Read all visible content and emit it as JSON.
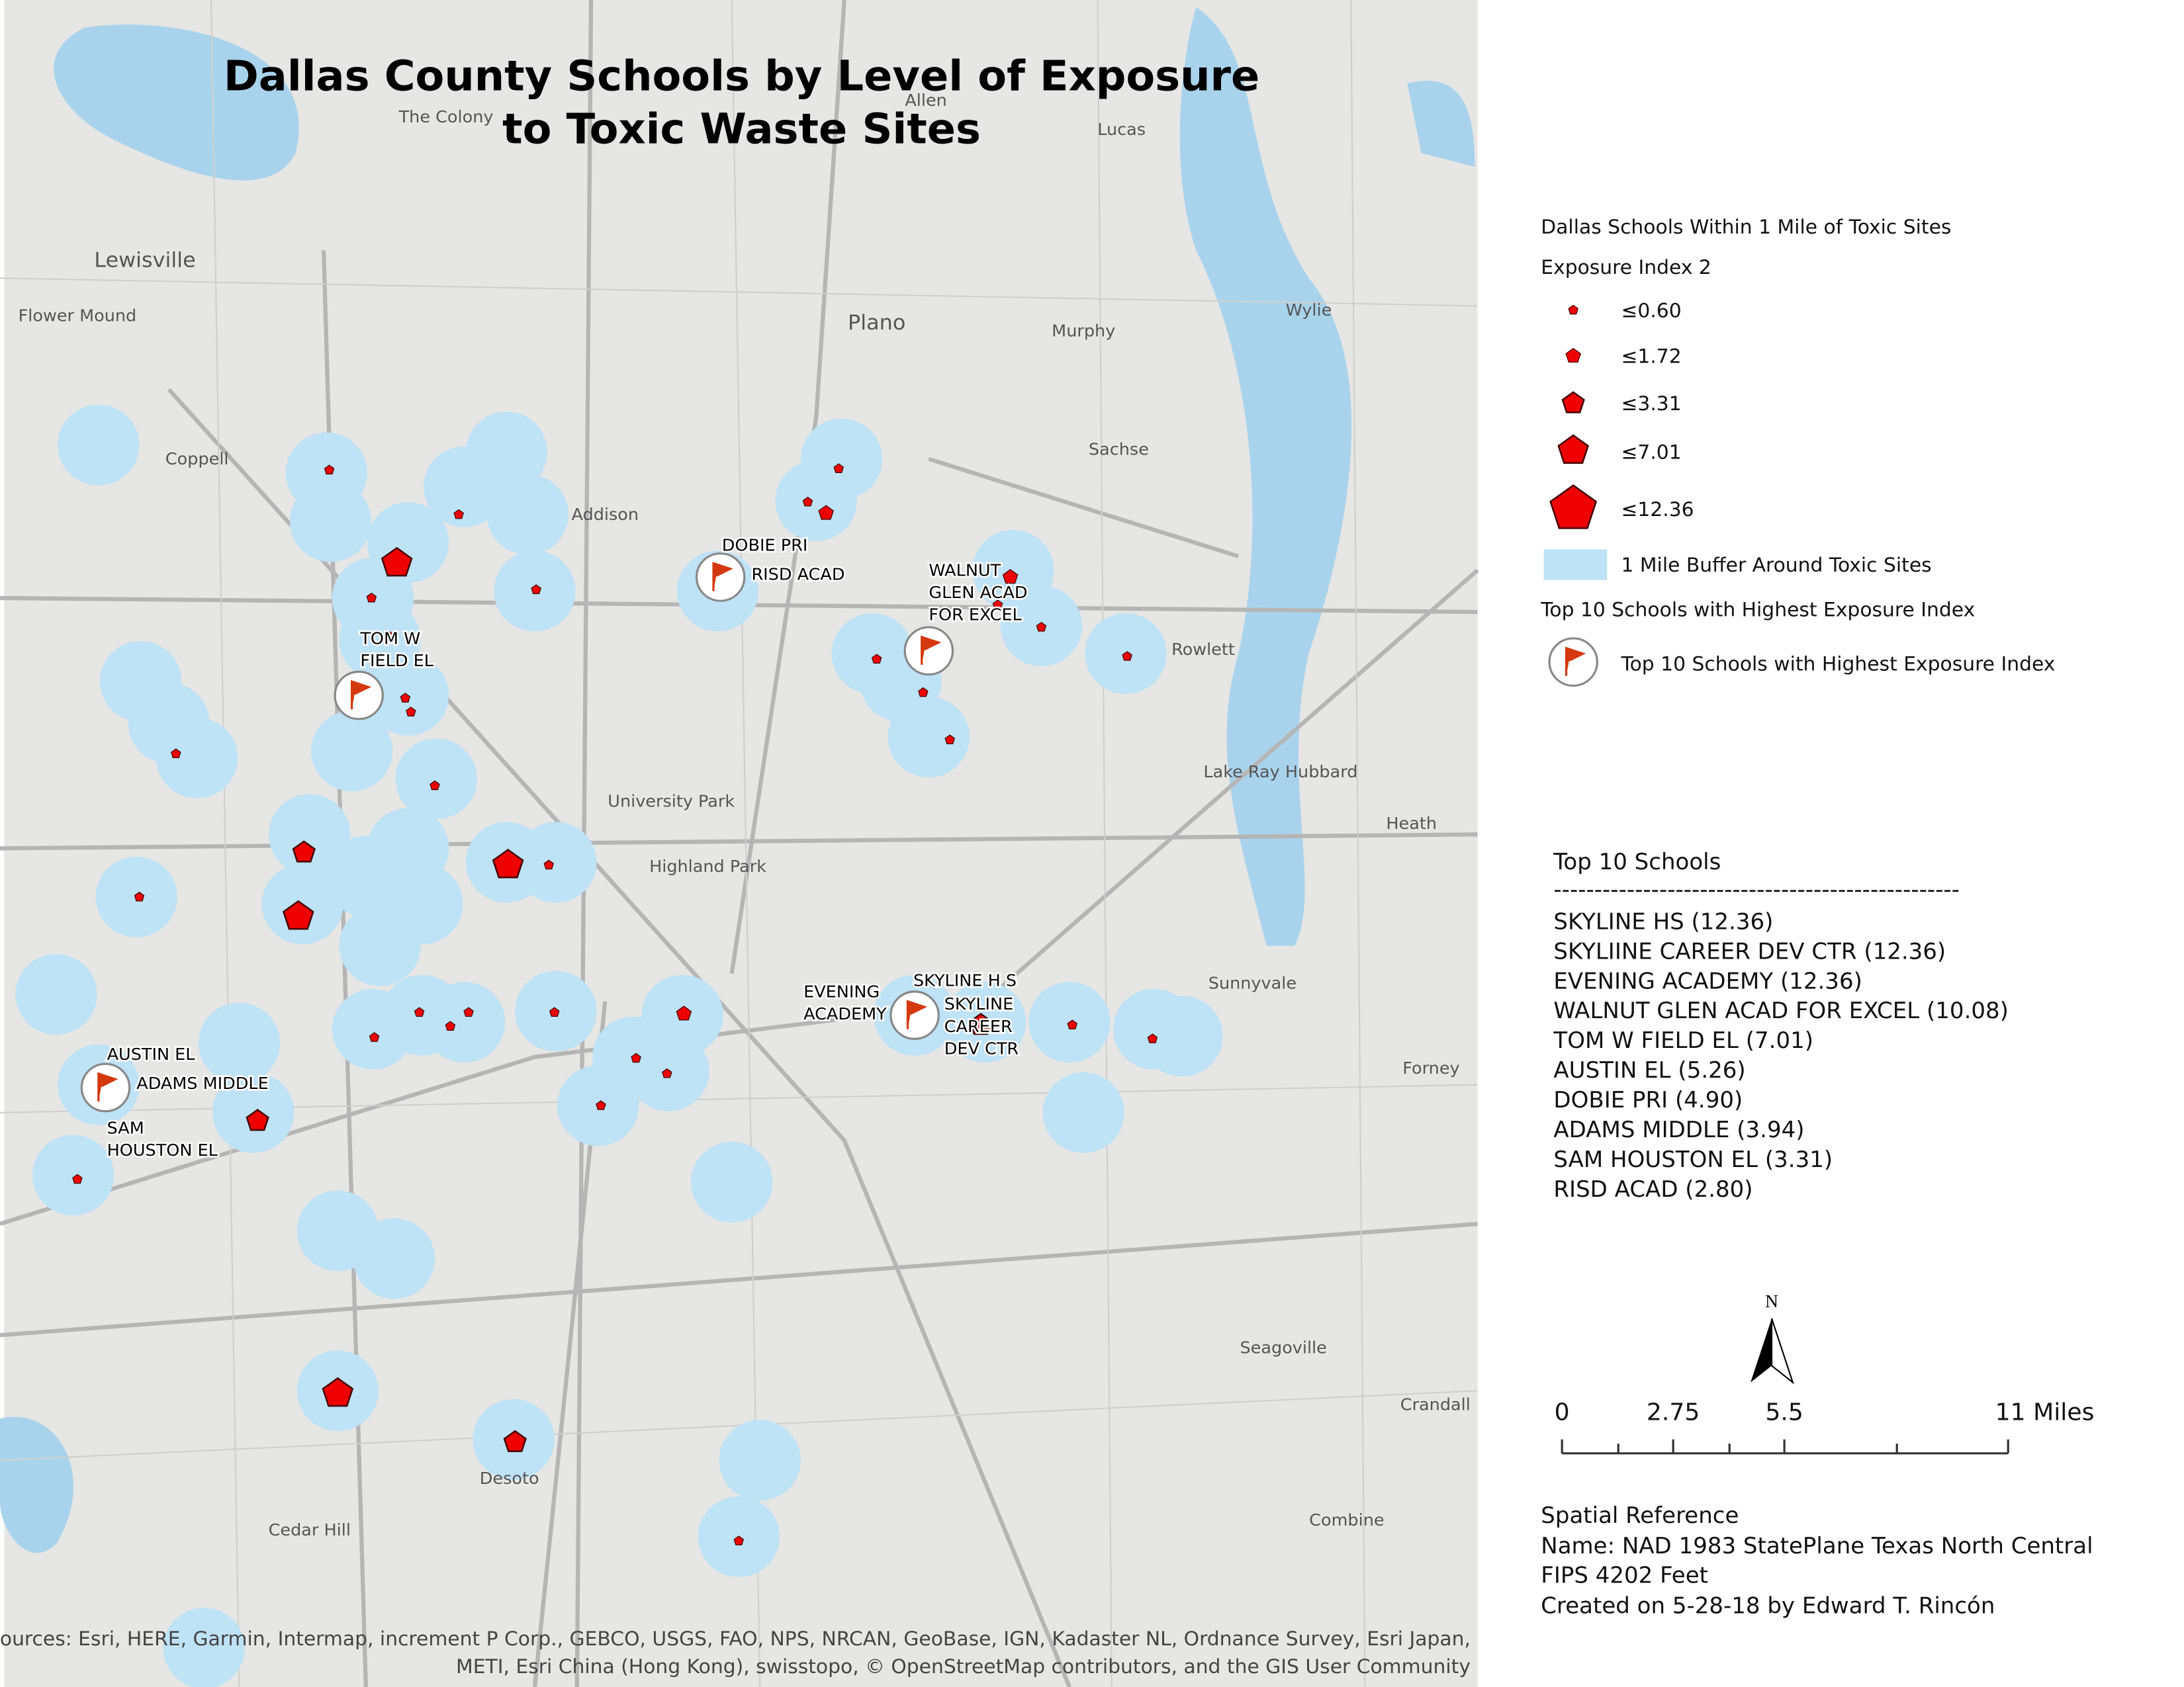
{
  "title": [
    "Dallas County Schools by Level of Exposure",
    "to Toxic Waste Sites"
  ],
  "legend": {
    "layer": "Dallas Schools Within 1 Mile of Toxic Sites",
    "field": "Exposure Index 2",
    "classes": [
      "≤0.60",
      "≤1.72",
      "≤3.31",
      "≤7.01",
      "≤12.36"
    ],
    "buffer": "1 Mile Buffer Around Toxic Sites",
    "top_layer": "Top 10 Schools with Highest Exposure Index",
    "top_item": "Top 10 Schools with Highest Exposure Index"
  },
  "top10": {
    "heading": "Top 10 Schools",
    "rule": "--------------------------------------------------",
    "items": [
      "SKYLINE HS (12.36)",
      "SKYLIINE CAREER DEV CTR (12.36)",
      "EVENING ACADEMY (12.36)",
      "WALNUT GLEN ACAD FOR EXCEL (10.08)",
      "TOM W FIELD EL (7.01)",
      "AUSTIN EL  (5.26)",
      "DOBIE PRI (4.90)",
      "ADAMS MIDDLE (3.94)",
      "SAM HOUSTON EL (3.31)",
      "RISD ACAD (2.80)"
    ]
  },
  "map_labels": [
    [
      "DOBIE PRI"
    ],
    [
      "RISD ACAD"
    ],
    [
      "WALNUT",
      "GLEN ACAD",
      "FOR EXCEL"
    ],
    [
      "TOM W",
      "FIELD EL"
    ],
    [
      "SKYLINE H S"
    ],
    [
      "EVENING",
      "ACADEMY"
    ],
    [
      "SKYLINE",
      "CAREER",
      "DEV CTR"
    ],
    [
      "AUSTIN EL"
    ],
    [
      "ADAMS MIDDLE"
    ],
    [
      "SAM",
      "HOUSTON EL"
    ]
  ],
  "place_labels": [
    "Lewisville",
    "Plano",
    "Coppell",
    "Addison",
    "Wylie",
    "Murphy",
    "Sachse",
    "Rowlett",
    "Lake Ray Hubbard",
    "Heath",
    "University Park",
    "Highland Park",
    "Sunnyvale",
    "Forney",
    "Seagoville",
    "Crandall",
    "Combine",
    "Cedar Hill",
    "Desoto",
    "Lucas",
    "Allen",
    "The Colony",
    "Flower Mound"
  ],
  "north": "N",
  "scale_bar": [
    "0",
    "2.75",
    "5.5",
    "11 Miles"
  ],
  "spatial_reference": [
    "Spatial Reference",
    "Name: NAD 1983 StatePlane Texas North Central",
    "FIPS 4202 Feet",
    "Created on 5-28-18 by Edward T. Rincón"
  ],
  "sources": [
    "Sources: Esri, HERE, Garmin, Intermap, increment P Corp., GEBCO, USGS, FAO, NPS, NRCAN, GeoBase, IGN, Kadaster NL, Ordnance Survey, Esri Japan,",
    "METI, Esri China (Hong Kong), swisstopo, © OpenStreetMap contributors, and the GIS User Community"
  ]
}
